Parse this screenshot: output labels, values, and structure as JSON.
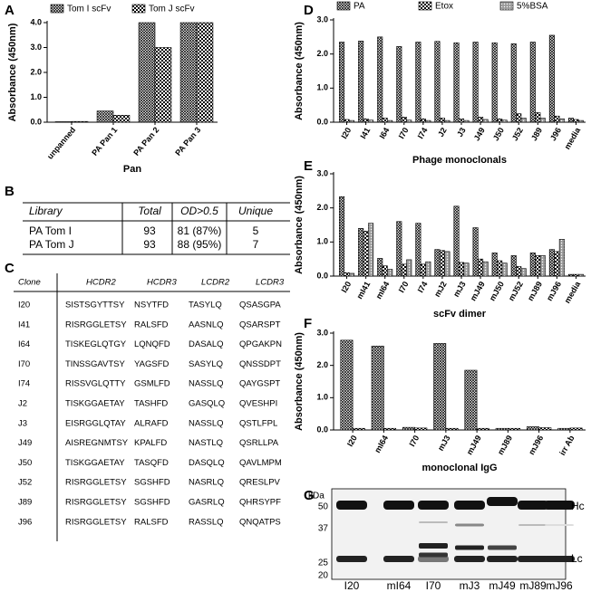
{
  "chart_data": [
    {
      "type": "bar",
      "panel_label": "A",
      "xlabel": "Pan",
      "ylabel": "Absorbance (450nm)",
      "categories": [
        "unpanned",
        "PA Pan 1",
        "PA Pan 2",
        "PA Pan 3"
      ],
      "series": [
        {
          "name": "Tom I scFv",
          "pattern": "fine",
          "values": [
            0.02,
            0.45,
            4.0,
            4.0
          ]
        },
        {
          "name": "Tom J scFv",
          "pattern": "checker",
          "values": [
            0.03,
            0.28,
            3.0,
            4.0
          ]
        }
      ],
      "ylim": [
        0,
        4
      ],
      "yticks": [
        {
          "value": 0,
          "label": "0.0"
        },
        {
          "value": 1,
          "label": "1.0"
        },
        {
          "value": 2,
          "label": "2.0"
        },
        {
          "value": 3,
          "label": "3.0"
        },
        {
          "value": 4,
          "label": "4.0"
        }
      ],
      "legend": "top"
    },
    {
      "type": "bar",
      "panel_label": "D",
      "xlabel": "Phage monoclonals",
      "ylabel": "Absorbance (450nm)",
      "categories": [
        "I20",
        "I41",
        "I64",
        "I70",
        "I74",
        "J2",
        "J3",
        "J49",
        "J50",
        "J52",
        "J89",
        "J96",
        "media"
      ],
      "series": [
        {
          "name": "PA",
          "pattern": "fine",
          "values": [
            2.35,
            2.38,
            2.5,
            2.22,
            2.35,
            2.37,
            2.33,
            2.35,
            2.33,
            2.3,
            2.35,
            2.55,
            0.12
          ]
        },
        {
          "name": "Etox",
          "pattern": "checker",
          "values": [
            0.08,
            0.1,
            0.12,
            0.15,
            0.1,
            0.12,
            0.1,
            0.15,
            0.1,
            0.25,
            0.28,
            0.18,
            0.08
          ]
        },
        {
          "name": "5%BSA",
          "pattern": "dots",
          "values": [
            0.05,
            0.06,
            0.05,
            0.06,
            0.05,
            0.05,
            0.05,
            0.08,
            0.06,
            0.12,
            0.12,
            0.1,
            0.05
          ]
        }
      ],
      "ylim": [
        0,
        3
      ],
      "yticks": [
        {
          "value": 0,
          "label": "0.0"
        },
        {
          "value": 1,
          "label": "1.0"
        },
        {
          "value": 2,
          "label": "2.0"
        },
        {
          "value": 3,
          "label": "3.0"
        }
      ],
      "legend": "top"
    },
    {
      "type": "bar",
      "panel_label": "E",
      "xlabel": "scFv dimer",
      "ylabel": "Absorbance (450nm)",
      "categories": [
        "I20",
        "mI41",
        "mI64",
        "I70",
        "I74",
        "mJ2",
        "mJ3",
        "mJ49",
        "mJ50",
        "mJ52",
        "mJ89",
        "mJ96",
        "media"
      ],
      "series": [
        {
          "pattern": "fine",
          "values": [
            2.33,
            1.4,
            0.52,
            1.6,
            1.55,
            0.78,
            2.05,
            1.42,
            0.68,
            0.6,
            0.68,
            0.78,
            0.05
          ]
        },
        {
          "pattern": "checker",
          "values": [
            0.1,
            1.32,
            0.3,
            0.35,
            0.35,
            0.75,
            0.4,
            0.5,
            0.45,
            0.28,
            0.6,
            0.72,
            0.05
          ]
        },
        {
          "pattern": "dots",
          "values": [
            0.08,
            1.55,
            0.2,
            0.48,
            0.42,
            0.72,
            0.38,
            0.42,
            0.38,
            0.22,
            0.6,
            1.08,
            0.05
          ]
        }
      ],
      "ylim": [
        0,
        3
      ],
      "yticks": [
        {
          "value": 0,
          "label": "0.0"
        },
        {
          "value": 1,
          "label": "1.0"
        },
        {
          "value": 2,
          "label": "2.0"
        },
        {
          "value": 3,
          "label": "3.0"
        }
      ]
    },
    {
      "type": "bar",
      "panel_label": "F",
      "xlabel": "monoclonal IgG",
      "ylabel": "Absorbance (450nm)",
      "categories": [
        "I20",
        "mI64",
        "I70",
        "mJ3",
        "mJ49",
        "mJ89",
        "mJ96",
        "irr Ab"
      ],
      "series": [
        {
          "pattern": "fine",
          "values": [
            2.78,
            2.6,
            0.08,
            2.68,
            1.85,
            0.05,
            0.1,
            0.05
          ]
        },
        {
          "pattern": "checker",
          "values": [
            0.05,
            0.05,
            0.06,
            0.05,
            0.05,
            0.05,
            0.07,
            0.06
          ]
        }
      ],
      "ylim": [
        0,
        3
      ],
      "yticks": [
        {
          "value": 0,
          "label": "0.0"
        },
        {
          "value": 1,
          "label": "1.0"
        },
        {
          "value": 2,
          "label": "2.0"
        },
        {
          "value": 3,
          "label": "3.0"
        }
      ]
    }
  ],
  "table_b": {
    "panel_label": "B",
    "header": [
      "Library",
      "Total",
      "OD>0.5",
      "Unique"
    ],
    "rows": [
      [
        "PA Tom I",
        "93",
        "81 (87%)",
        "5"
      ],
      [
        "PA Tom J",
        "93",
        "88 (95%)",
        "7"
      ]
    ]
  },
  "table_c": {
    "panel_label": "C",
    "header": [
      "Clone",
      "HCDR2",
      "HCDR3",
      "LCDR2",
      "LCDR3"
    ],
    "rows": [
      [
        "I20",
        "SISTSGYTTSY",
        "NSYTFD",
        "TASYLQ",
        "QSASGPA"
      ],
      [
        "I41",
        "RISRGGLETSY",
        "RALSFD",
        "AASNLQ",
        "QSARSPT"
      ],
      [
        "I64",
        "TISKEGLQTGY",
        "LQNQFD",
        "DASALQ",
        "QPGAKPN"
      ],
      [
        "I70",
        "TINSSGAVTSY",
        "YAGSFD",
        "SASYLQ",
        "QNSSDPT"
      ],
      [
        "I74",
        "RISSVGLQTTY",
        "GSMLFD",
        "NASSLQ",
        "QAYGSPT"
      ],
      [
        "J2",
        "TISKGGAETAY",
        "TASHFD",
        "GASQLQ",
        "QVESHPI"
      ],
      [
        "J3",
        "EISRGGLQTAY",
        "ALRAFD",
        "NASSLQ",
        "QSTLFPL"
      ],
      [
        "J49",
        "AISREGNMTSY",
        "KPALFD",
        "NASTLQ",
        "QSRLLPA"
      ],
      [
        "J50",
        "TISKGGAETAY",
        "TASQFD",
        "DASQLQ",
        "QAVLMPM"
      ],
      [
        "J52",
        "RISRGGLETSY",
        "SGSHFD",
        "NASRLQ",
        "QRESLPV"
      ],
      [
        "J89",
        "RISRGGLETSY",
        "SGSHFD",
        "GASRLQ",
        "QHRSYPF"
      ],
      [
        "J96",
        "RISRGGLETSY",
        "RALSFD",
        "RASSLQ",
        "QNQATPS"
      ]
    ]
  },
  "gel": {
    "panel_label": "G",
    "unit": "kDa",
    "markers": [
      "50",
      "37",
      "25",
      "20"
    ],
    "bands": [
      "Hc",
      "Lc"
    ],
    "lanes": [
      "I20",
      "mI64",
      "I70",
      "mJ3",
      "mJ49",
      "mJ89",
      "mJ96"
    ]
  }
}
